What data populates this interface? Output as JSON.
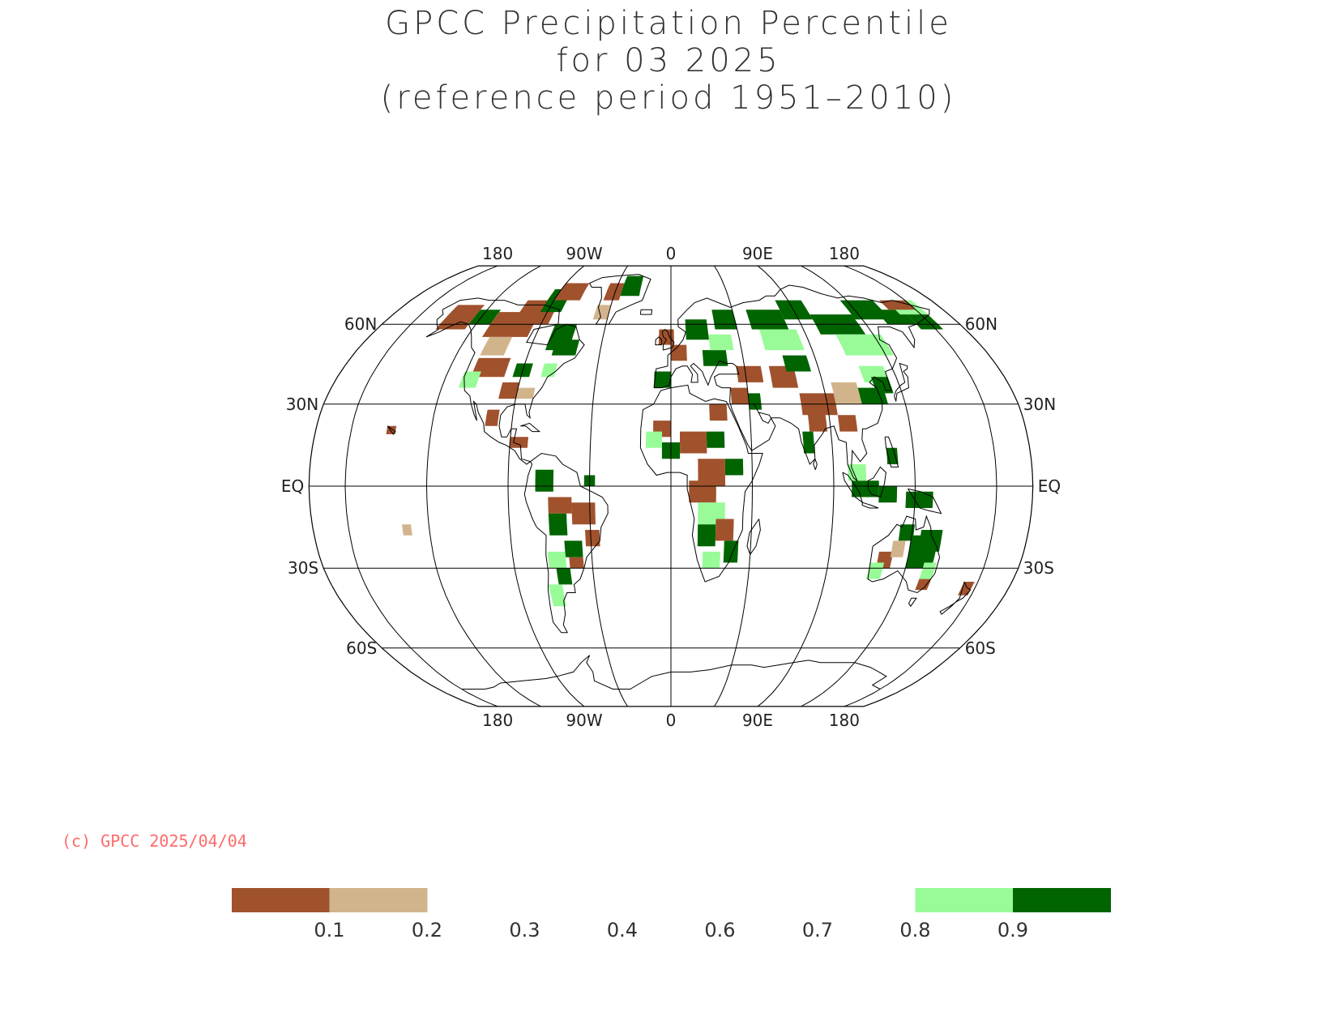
{
  "title": {
    "line1": "GPCC Precipitation Percentile",
    "line2": "for 03 2025",
    "line3": "(reference period 1951–2010)"
  },
  "map": {
    "projection": "robinson",
    "grid": {
      "top_lon_labels": [
        "180",
        "90W",
        "0",
        "90E",
        "180"
      ],
      "bottom_lon_labels": [
        "180",
        "90W",
        "0",
        "90E",
        "180"
      ],
      "lat_labels": [
        {
          "lat": 60,
          "text": "60N"
        },
        {
          "lat": 30,
          "text": "30N"
        },
        {
          "lat": 0,
          "text": "EQ"
        },
        {
          "lat": -30,
          "text": "30S"
        },
        {
          "lat": -60,
          "text": "60S"
        }
      ]
    },
    "colors": {
      "very_dry": "#a0522d",
      "dry": "#d2b48c",
      "wet": "#98fb98",
      "very_wet": "#006400",
      "coast": "#000000",
      "grid": "#000000"
    }
  },
  "copyright": "(c) GPCC 2025/04/04",
  "legend": {
    "bins": [
      "very_dry",
      "dry",
      "normal",
      "normal",
      "normal",
      "normal",
      "normal",
      "wet",
      "very_wet"
    ],
    "ticks": [
      "0.1",
      "0.2",
      "0.3",
      "0.4",
      "0.6",
      "0.7",
      "0.8",
      "0.9"
    ]
  }
}
